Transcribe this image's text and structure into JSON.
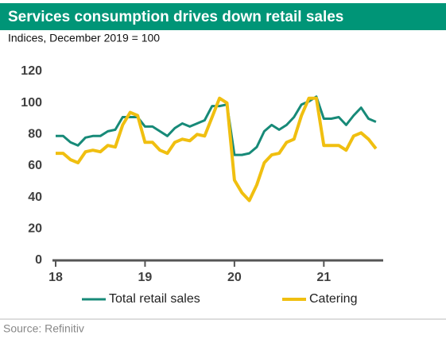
{
  "chart_data": {
    "type": "line",
    "title": "Services consumption drives down retail sales",
    "subtitle": "Indices, December 2019 = 100",
    "source": "Source: Refinitiv",
    "categories": [
      "18",
      null,
      null,
      null,
      null,
      null,
      null,
      null,
      null,
      null,
      null,
      null,
      "19",
      null,
      null,
      null,
      null,
      null,
      null,
      null,
      null,
      null,
      null,
      null,
      "20",
      null,
      null,
      null,
      null,
      null,
      null,
      null,
      null,
      null,
      null,
      null,
      "21",
      null,
      null,
      null,
      null,
      null,
      null,
      null
    ],
    "series": [
      {
        "name": "Total retail sales",
        "color": "#178a78",
        "values": [
          79,
          79,
          75,
          73,
          78,
          79,
          79,
          82,
          83,
          91,
          91,
          91,
          85,
          85,
          82,
          79,
          84,
          87,
          85,
          87,
          89,
          98,
          98,
          99,
          67,
          67,
          68,
          72,
          82,
          86,
          83,
          86,
          91,
          99,
          101,
          104,
          90,
          90,
          91,
          86,
          92,
          97,
          90,
          88
        ]
      },
      {
        "name": "Catering",
        "color": "#f0bf10",
        "values": [
          68,
          68,
          64,
          62,
          69,
          70,
          69,
          73,
          72,
          86,
          94,
          92,
          75,
          75,
          70,
          68,
          75,
          77,
          76,
          80,
          79,
          91,
          103,
          100,
          51,
          43,
          38,
          48,
          62,
          67,
          68,
          75,
          77,
          92,
          103,
          103,
          73,
          73,
          73,
          70,
          79,
          81,
          77,
          71
        ]
      }
    ],
    "ylim": [
      0,
      120
    ],
    "yticks": [
      0,
      20,
      40,
      60,
      80,
      100,
      120
    ],
    "grid": false,
    "legend": "bottom"
  }
}
